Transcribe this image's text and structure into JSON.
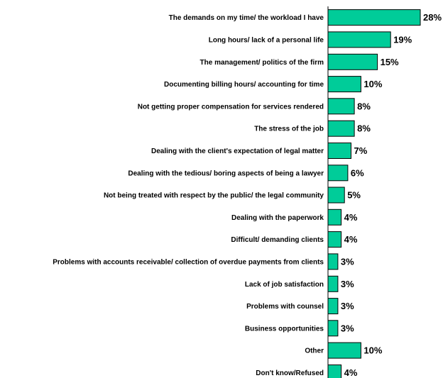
{
  "chart_data": {
    "type": "bar",
    "orientation": "horizontal",
    "categories": [
      "The demands on my time/ the workload I have",
      "Long hours/ lack of a personal life",
      "The management/ politics of the firm",
      "Documenting billing hours/ accounting for time",
      "Not getting proper compensation for services rendered",
      "The stress of the job",
      "Dealing with the client's expectation of legal matter",
      "Dealing with the tedious/ boring aspects of being a lawyer",
      "Not being treated with respect by the public/ the legal community",
      "Dealing with the paperwork",
      "Difficult/ demanding clients",
      "Problems with accounts receivable/ collection of overdue payments from clients",
      "Lack of job satisfaction",
      "Problems with counsel",
      "Business opportunities",
      "Other",
      "Don't know/Refused"
    ],
    "values": [
      28,
      19,
      15,
      10,
      8,
      8,
      7,
      6,
      5,
      4,
      4,
      3,
      3,
      3,
      3,
      10,
      4
    ],
    "value_labels": [
      "28%",
      "19%",
      "15%",
      "10%",
      "8%",
      "8%",
      "7%",
      "6%",
      "5%",
      "4%",
      "4%",
      "3%",
      "3%",
      "3%",
      "3%",
      "10%",
      "4%"
    ],
    "unit": "%",
    "xlim": [
      0,
      28
    ],
    "bar_color": "#00CC99",
    "bar_outline": "#000000",
    "axis_color": "#000000",
    "grid": false,
    "legend": false
  }
}
